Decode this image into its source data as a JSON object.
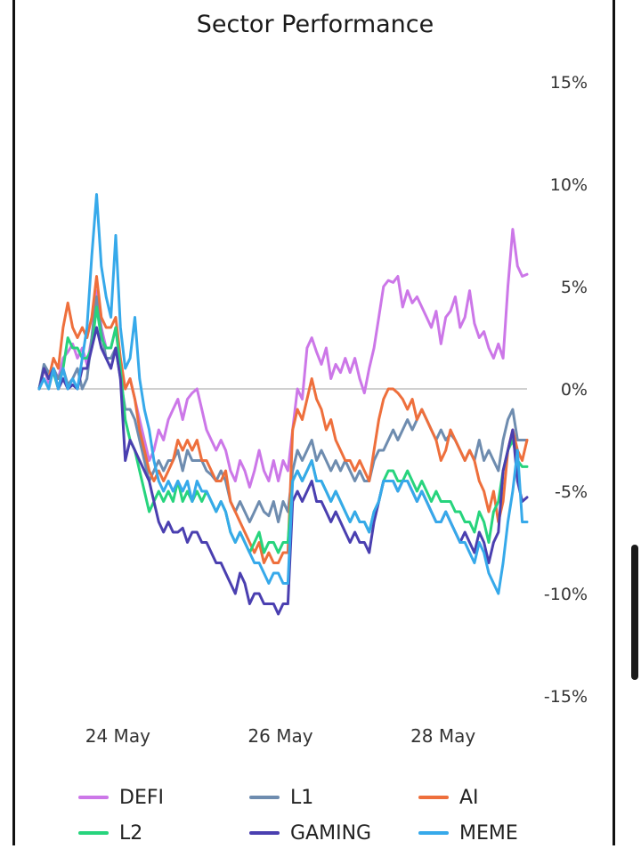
{
  "chart_data": {
    "type": "line",
    "title": "Sector Performance",
    "xlabel": "",
    "ylabel": "",
    "x_start": "23 May 00:00",
    "x_end": "29 May 00:00",
    "x_ticks": [
      "24 May",
      "26 May",
      "28 May"
    ],
    "y_ticks": [
      "15%",
      "10%",
      "5%",
      "0%",
      "-5%",
      "-10%",
      "-15%"
    ],
    "ylim": [
      -15,
      15
    ],
    "grid": false,
    "zero_line": true,
    "y_axis_position": "right",
    "legend_position": "bottom",
    "series": [
      {
        "name": "DEFI",
        "color": "#cc77e8",
        "values": [
          0,
          1.0,
          0.3,
          0.8,
          0.5,
          1.5,
          1.8,
          2.2,
          1.5,
          2.0,
          1.2,
          2.5,
          4.8,
          3.0,
          2.0,
          2.0,
          3.0,
          1.0,
          0.0,
          0.5,
          -0.5,
          -1.5,
          -2.5,
          -3.5,
          -3.0,
          -2.0,
          -2.5,
          -1.5,
          -1.0,
          -0.5,
          -1.5,
          -0.5,
          -0.2,
          0.0,
          -1.0,
          -2.0,
          -2.5,
          -3.0,
          -2.5,
          -3.0,
          -4.0,
          -4.5,
          -3.5,
          -4.0,
          -4.8,
          -4.0,
          -3.0,
          -4.0,
          -4.5,
          -3.5,
          -4.5,
          -3.5,
          -4.0,
          -2.0,
          0.0,
          -0.5,
          2.0,
          2.5,
          1.8,
          1.2,
          2.0,
          0.5,
          1.2,
          0.8,
          1.5,
          0.8,
          1.5,
          0.5,
          -0.2,
          1.0,
          2.0,
          3.5,
          5.0,
          5.3,
          5.2,
          5.5,
          4.0,
          4.8,
          4.2,
          4.5,
          4.0,
          3.5,
          3.0,
          3.8,
          2.2,
          3.5,
          3.8,
          4.5,
          3.0,
          3.5,
          4.8,
          3.2,
          2.5,
          2.8,
          2.0,
          1.5,
          2.2,
          1.5,
          5.0,
          7.8,
          6.0,
          5.5,
          5.6
        ]
      },
      {
        "name": "L1",
        "color": "#6e8caf",
        "values": [
          0,
          1.2,
          0.8,
          1.0,
          0.5,
          1.0,
          0.2,
          0.5,
          1.0,
          0.0,
          0.5,
          2.5,
          4.5,
          2.8,
          1.5,
          1.5,
          2.0,
          0.5,
          -1.0,
          -1.0,
          -1.5,
          -2.5,
          -3.5,
          -4.5,
          -4.0,
          -3.5,
          -4.0,
          -3.5,
          -3.5,
          -3.0,
          -4.0,
          -3.0,
          -3.5,
          -3.5,
          -3.5,
          -4.0,
          -4.2,
          -4.5,
          -4.0,
          -4.5,
          -5.5,
          -6.0,
          -5.5,
          -6.0,
          -6.5,
          -6.0,
          -5.5,
          -6.0,
          -6.2,
          -5.5,
          -6.5,
          -5.5,
          -6.0,
          -4.0,
          -3.0,
          -3.5,
          -3.0,
          -2.5,
          -3.5,
          -3.0,
          -3.5,
          -4.0,
          -3.5,
          -4.0,
          -3.5,
          -4.0,
          -4.5,
          -4.0,
          -4.5,
          -4.5,
          -3.5,
          -3.0,
          -3.0,
          -2.5,
          -2.0,
          -2.5,
          -2.0,
          -1.5,
          -2.0,
          -1.5,
          -1.0,
          -1.5,
          -2.0,
          -2.5,
          -2.0,
          -2.5,
          -2.2,
          -2.5,
          -3.0,
          -3.5,
          -3.0,
          -3.5,
          -2.5,
          -3.5,
          -3.0,
          -3.5,
          -4.0,
          -2.5,
          -1.5,
          -1.0,
          -2.5,
          -2.5,
          -2.5
        ]
      },
      {
        "name": "AI",
        "color": "#ee6f3c",
        "values": [
          0,
          1.0,
          0.5,
          1.5,
          1.0,
          3.0,
          4.2,
          3.0,
          2.5,
          3.0,
          2.5,
          3.5,
          5.5,
          3.5,
          3.0,
          3.0,
          3.5,
          1.5,
          0.0,
          0.5,
          -0.5,
          -2.0,
          -3.0,
          -4.0,
          -4.5,
          -4.0,
          -4.5,
          -4.0,
          -3.5,
          -2.5,
          -3.0,
          -2.5,
          -3.0,
          -2.5,
          -3.5,
          -3.5,
          -4.0,
          -4.5,
          -4.5,
          -4.0,
          -5.5,
          -6.0,
          -6.5,
          -7.0,
          -7.5,
          -8.0,
          -7.5,
          -8.5,
          -8.0,
          -8.5,
          -8.5,
          -8.0,
          -8.0,
          -2.0,
          -1.0,
          -1.5,
          -0.5,
          0.5,
          -0.5,
          -1.0,
          -2.0,
          -1.5,
          -2.5,
          -3.0,
          -3.5,
          -3.5,
          -4.0,
          -3.5,
          -4.0,
          -4.5,
          -3.0,
          -1.5,
          -0.5,
          0.0,
          0.0,
          -0.2,
          -0.5,
          -1.0,
          -0.5,
          -1.5,
          -1.0,
          -1.5,
          -2.0,
          -2.5,
          -3.5,
          -3.0,
          -2.0,
          -2.5,
          -3.0,
          -3.5,
          -3.0,
          -3.5,
          -4.5,
          -5.0,
          -6.0,
          -5.0,
          -6.5,
          -5.5,
          -3.0,
          -2.0,
          -3.0,
          -3.5,
          -2.5
        ]
      },
      {
        "name": "L2",
        "color": "#27d47d",
        "values": [
          0,
          1.0,
          0.5,
          0.8,
          0.0,
          1.0,
          2.5,
          2.0,
          2.0,
          1.5,
          1.5,
          2.0,
          4.0,
          2.5,
          2.0,
          2.0,
          3.0,
          1.0,
          -1.5,
          -2.5,
          -3.0,
          -4.0,
          -5.0,
          -6.0,
          -5.5,
          -5.0,
          -5.5,
          -5.0,
          -5.5,
          -4.5,
          -5.5,
          -5.0,
          -5.5,
          -5.0,
          -5.5,
          -5.0,
          -5.5,
          -6.0,
          -5.5,
          -6.0,
          -7.0,
          -7.5,
          -7.0,
          -7.5,
          -8.0,
          -7.5,
          -7.0,
          -8.0,
          -7.5,
          -7.5,
          -8.0,
          -7.5,
          -7.5,
          -4.5,
          -4.0,
          -4.5,
          -4.0,
          -3.5,
          -4.5,
          -4.5,
          -5.0,
          -5.5,
          -5.0,
          -5.5,
          -6.0,
          -6.5,
          -6.0,
          -6.5,
          -6.5,
          -7.0,
          -6.0,
          -5.5,
          -4.5,
          -4.0,
          -4.0,
          -4.5,
          -4.5,
          -4.0,
          -4.5,
          -5.0,
          -4.5,
          -5.0,
          -5.5,
          -5.0,
          -5.5,
          -5.5,
          -5.5,
          -6.0,
          -6.0,
          -6.5,
          -6.5,
          -7.0,
          -6.0,
          -6.5,
          -7.5,
          -6.0,
          -5.5,
          -4.0,
          -3.0,
          -2.5,
          -3.5,
          -3.8,
          -3.8
        ]
      },
      {
        "name": "GAMING",
        "color": "#4a3fb0",
        "values": [
          0,
          1.0,
          0.5,
          1.0,
          0.0,
          0.5,
          0.0,
          0.2,
          0.0,
          1.0,
          1.0,
          2.0,
          3.0,
          2.0,
          1.5,
          1.0,
          2.0,
          0.5,
          -3.5,
          -2.5,
          -3.0,
          -3.5,
          -4.0,
          -4.5,
          -5.5,
          -6.5,
          -7.0,
          -6.5,
          -7.0,
          -7.0,
          -6.8,
          -7.5,
          -7.0,
          -7.0,
          -7.5,
          -7.5,
          -8.0,
          -8.5,
          -8.5,
          -9.0,
          -9.5,
          -10.0,
          -9.0,
          -9.5,
          -10.5,
          -10.0,
          -10.0,
          -10.5,
          -10.5,
          -10.5,
          -11.0,
          -10.5,
          -10.5,
          -5.5,
          -5.0,
          -5.5,
          -5.0,
          -4.5,
          -5.5,
          -5.5,
          -6.0,
          -6.5,
          -6.0,
          -6.5,
          -7.0,
          -7.5,
          -7.0,
          -7.5,
          -7.5,
          -8.0,
          -6.5,
          -5.5,
          -4.5,
          -4.5,
          -4.5,
          -5.0,
          -4.5,
          -4.5,
          -5.0,
          -5.5,
          -5.0,
          -5.5,
          -6.0,
          -6.5,
          -6.5,
          -6.0,
          -6.5,
          -7.0,
          -7.5,
          -7.0,
          -7.5,
          -8.0,
          -7.0,
          -7.5,
          -8.5,
          -7.5,
          -7.0,
          -4.0,
          -3.0,
          -2.0,
          -4.5,
          -5.5,
          -5.3
        ]
      },
      {
        "name": "MEME",
        "color": "#36a9ea",
        "values": [
          0,
          0.5,
          0.0,
          1.0,
          0.0,
          1.0,
          0.0,
          0.5,
          0.0,
          1.5,
          3.0,
          6.5,
          9.5,
          6.0,
          4.5,
          3.5,
          7.5,
          3.0,
          1.0,
          1.5,
          3.5,
          0.5,
          -1.0,
          -2.0,
          -3.5,
          -4.5,
          -5.0,
          -4.5,
          -5.0,
          -4.5,
          -5.0,
          -4.5,
          -5.5,
          -4.5,
          -5.0,
          -5.0,
          -5.5,
          -6.0,
          -5.5,
          -6.0,
          -7.0,
          -7.5,
          -7.0,
          -7.5,
          -8.0,
          -8.5,
          -8.5,
          -9.0,
          -9.5,
          -9.0,
          -9.0,
          -9.5,
          -9.5,
          -4.5,
          -4.0,
          -4.5,
          -4.0,
          -3.5,
          -4.5,
          -4.5,
          -5.0,
          -5.5,
          -5.0,
          -5.5,
          -6.0,
          -6.5,
          -6.0,
          -6.5,
          -6.5,
          -7.0,
          -6.0,
          -5.5,
          -4.5,
          -4.5,
          -4.5,
          -5.0,
          -4.5,
          -4.5,
          -5.0,
          -5.5,
          -5.0,
          -5.5,
          -6.0,
          -6.5,
          -6.5,
          -6.0,
          -6.5,
          -7.0,
          -7.5,
          -7.5,
          -8.0,
          -8.5,
          -7.5,
          -8.0,
          -9.0,
          -9.5,
          -10.0,
          -8.5,
          -6.5,
          -5.0,
          -3.0,
          -6.5,
          -6.5
        ]
      }
    ]
  },
  "legend": [
    {
      "name": "DEFI",
      "color": "#cc77e8"
    },
    {
      "name": "L1",
      "color": "#6e8caf"
    },
    {
      "name": "AI",
      "color": "#ee6f3c"
    },
    {
      "name": "L2",
      "color": "#27d47d"
    },
    {
      "name": "GAMING",
      "color": "#4a3fb0"
    },
    {
      "name": "MEME",
      "color": "#36a9ea"
    }
  ]
}
